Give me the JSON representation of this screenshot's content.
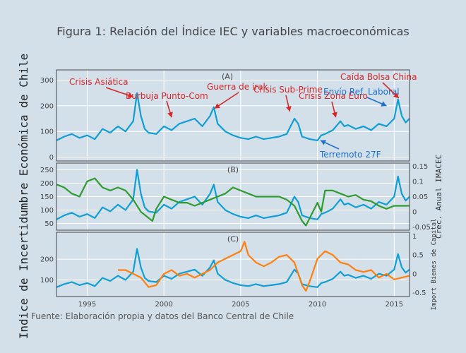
{
  "chart_data": {
    "type": "line",
    "title": "Figura 1: Relación del Índice IEC y variables macroeconómicas",
    "ylabel": "Indice de Incertidumbre Económica de Chile",
    "source": "Fuente: Elaboración propia  y datos del Banco Central de Chile",
    "x_ticks": [
      "1995",
      "2000",
      "2005",
      "2010",
      "2015"
    ],
    "xlim": [
      1993.0,
      2016.0
    ],
    "colors": {
      "iec": "#0f9ed5",
      "imacec": "#2f9b2f",
      "capital": "#ff7f0e",
      "annot_red": "#d62728",
      "annot_blue": "#1f6fd1"
    },
    "panels": [
      {
        "id": "A",
        "label": "(A)",
        "ylim": [
          -15,
          340
        ],
        "y_ticks": [
          "0",
          "100",
          "200",
          "300"
        ],
        "y_tick_values": [
          0,
          100,
          200,
          300
        ],
        "series": [
          {
            "key": "iec"
          }
        ],
        "annotations": [
          {
            "text": "Crisis Asiática",
            "color": "red",
            "target": [
              1998.0,
              235
            ]
          },
          {
            "text": "Burbuja  Punto-Com",
            "color": "red",
            "target": [
              2000.5,
              155
            ]
          },
          {
            "text": "Guerra de irak",
            "color": "red",
            "target": [
              2003.3,
              190
            ]
          },
          {
            "text": "Crisis Sub-Prime",
            "color": "red",
            "target": [
              2008.2,
              178
            ]
          },
          {
            "text": "Crisis Zona Euro",
            "color": "red",
            "target": [
              2011.2,
              155
            ]
          },
          {
            "text": "Envío Ref. Laboral",
            "color": "blue",
            "target": [
              2014.5,
              200
            ]
          },
          {
            "text": "Caída Bolsa China",
            "color": "red",
            "target": [
              2015.3,
              230
            ]
          },
          {
            "text": "Terremoto 27F",
            "color": "blue",
            "target": [
              2010.2,
              65
            ]
          }
        ]
      },
      {
        "id": "B",
        "label": "(B)",
        "ylim": [
          25,
          275
        ],
        "y_ticks": [
          "50",
          "100",
          "150",
          "200",
          "250"
        ],
        "y_tick_values": [
          50,
          100,
          150,
          200,
          250
        ],
        "y2_title": "Crec. Anual IMACEC",
        "y2lim": [
          -0.06,
          0.16
        ],
        "y2_ticks": [
          "-0.05",
          "0",
          "0.05",
          "0.1",
          "0.15"
        ],
        "y2_tick_values": [
          -0.05,
          0,
          0.05,
          0.1,
          0.15
        ],
        "series": [
          {
            "key": "iec",
            "axis": "left"
          },
          {
            "key": "imacec",
            "axis": "right"
          }
        ]
      },
      {
        "id": "C",
        "label": "(C)",
        "ylim": [
          20,
          330
        ],
        "y_ticks": [
          "100",
          "200"
        ],
        "y_tick_values": [
          100,
          200
        ],
        "y2_title": "Import Bienes de Capital",
        "y2lim": [
          -0.6,
          1.1
        ],
        "y2_ticks": [
          "-0.5",
          "0",
          "0.5",
          "1"
        ],
        "y2_tick_values": [
          -0.5,
          0,
          0.5,
          1
        ],
        "series": [
          {
            "key": "iec",
            "axis": "left"
          },
          {
            "key": "capital",
            "axis": "right"
          }
        ]
      }
    ],
    "series_data": {
      "iec": {
        "x": [
          1993.0,
          1993.5,
          1994.0,
          1994.5,
          1995.0,
          1995.5,
          1996.0,
          1996.5,
          1997.0,
          1997.5,
          1998.0,
          1998.25,
          1998.5,
          1998.75,
          1999.0,
          1999.5,
          2000.0,
          2000.5,
          2001.0,
          2001.5,
          2002.0,
          2002.5,
          2003.0,
          2003.25,
          2003.5,
          2004.0,
          2004.5,
          2005.0,
          2005.5,
          2006.0,
          2006.5,
          2007.0,
          2007.5,
          2008.0,
          2008.5,
          2008.75,
          2009.0,
          2009.5,
          2010.0,
          2010.25,
          2010.5,
          2011.0,
          2011.5,
          2011.75,
          2012.0,
          2012.5,
          2013.0,
          2013.5,
          2014.0,
          2014.5,
          2015.0,
          2015.25,
          2015.5,
          2015.75,
          2016.0
        ],
        "y": [
          65,
          80,
          90,
          75,
          85,
          70,
          110,
          95,
          120,
          100,
          140,
          250,
          160,
          110,
          95,
          90,
          120,
          105,
          130,
          140,
          150,
          120,
          160,
          195,
          130,
          100,
          85,
          75,
          70,
          80,
          70,
          75,
          80,
          90,
          150,
          130,
          80,
          70,
          65,
          85,
          90,
          105,
          140,
          120,
          125,
          110,
          120,
          105,
          130,
          120,
          150,
          225,
          160,
          135,
          150
        ]
      },
      "imacec": {
        "x": [
          1993.0,
          1993.5,
          1994.0,
          1994.5,
          1995.0,
          1995.5,
          1996.0,
          1996.5,
          1997.0,
          1997.5,
          1998.0,
          1998.5,
          1999.0,
          1999.25,
          1999.5,
          2000.0,
          2000.5,
          2001.0,
          2001.5,
          2002.0,
          2002.5,
          2003.0,
          2003.5,
          2004.0,
          2004.5,
          2005.0,
          2005.5,
          2006.0,
          2006.5,
          2007.0,
          2007.5,
          2008.0,
          2008.5,
          2009.0,
          2009.25,
          2009.5,
          2010.0,
          2010.25,
          2010.5,
          2011.0,
          2011.5,
          2012.0,
          2012.5,
          2013.0,
          2013.5,
          2014.0,
          2014.5,
          2015.0,
          2015.5,
          2016.0
        ],
        "y": [
          0.09,
          0.08,
          0.06,
          0.05,
          0.1,
          0.11,
          0.08,
          0.07,
          0.08,
          0.07,
          0.04,
          0.0,
          -0.02,
          -0.03,
          0.01,
          0.05,
          0.04,
          0.03,
          0.03,
          0.02,
          0.03,
          0.04,
          0.05,
          0.06,
          0.08,
          0.07,
          0.06,
          0.05,
          0.05,
          0.05,
          0.05,
          0.04,
          0.02,
          -0.03,
          -0.045,
          -0.02,
          0.03,
          0.0,
          0.07,
          0.07,
          0.06,
          0.05,
          0.055,
          0.04,
          0.035,
          0.02,
          0.01,
          0.02,
          0.02,
          0.02
        ]
      },
      "capital": {
        "x": [
          1997.0,
          1997.5,
          1998.0,
          1998.5,
          1999.0,
          1999.5,
          2000.0,
          2000.5,
          2001.0,
          2001.5,
          2002.0,
          2002.5,
          2003.0,
          2003.5,
          2004.0,
          2004.5,
          2005.0,
          2005.25,
          2005.5,
          2006.0,
          2006.5,
          2007.0,
          2007.5,
          2008.0,
          2008.5,
          2009.0,
          2009.25,
          2009.5,
          2010.0,
          2010.5,
          2011.0,
          2011.5,
          2012.0,
          2012.5,
          2013.0,
          2013.5,
          2014.0,
          2014.5,
          2015.0,
          2015.5,
          2016.0
        ],
        "y": [
          0.1,
          0.1,
          0.0,
          -0.1,
          -0.35,
          -0.3,
          0.0,
          0.1,
          -0.05,
          0.0,
          -0.1,
          0.0,
          0.1,
          0.3,
          0.4,
          0.5,
          0.6,
          0.85,
          0.5,
          0.3,
          0.2,
          0.3,
          0.45,
          0.5,
          0.3,
          -0.3,
          -0.45,
          -0.2,
          0.4,
          0.6,
          0.5,
          0.3,
          0.25,
          0.1,
          0.05,
          0.1,
          -0.1,
          0.0,
          -0.15,
          -0.1,
          -0.05
        ]
      }
    }
  }
}
